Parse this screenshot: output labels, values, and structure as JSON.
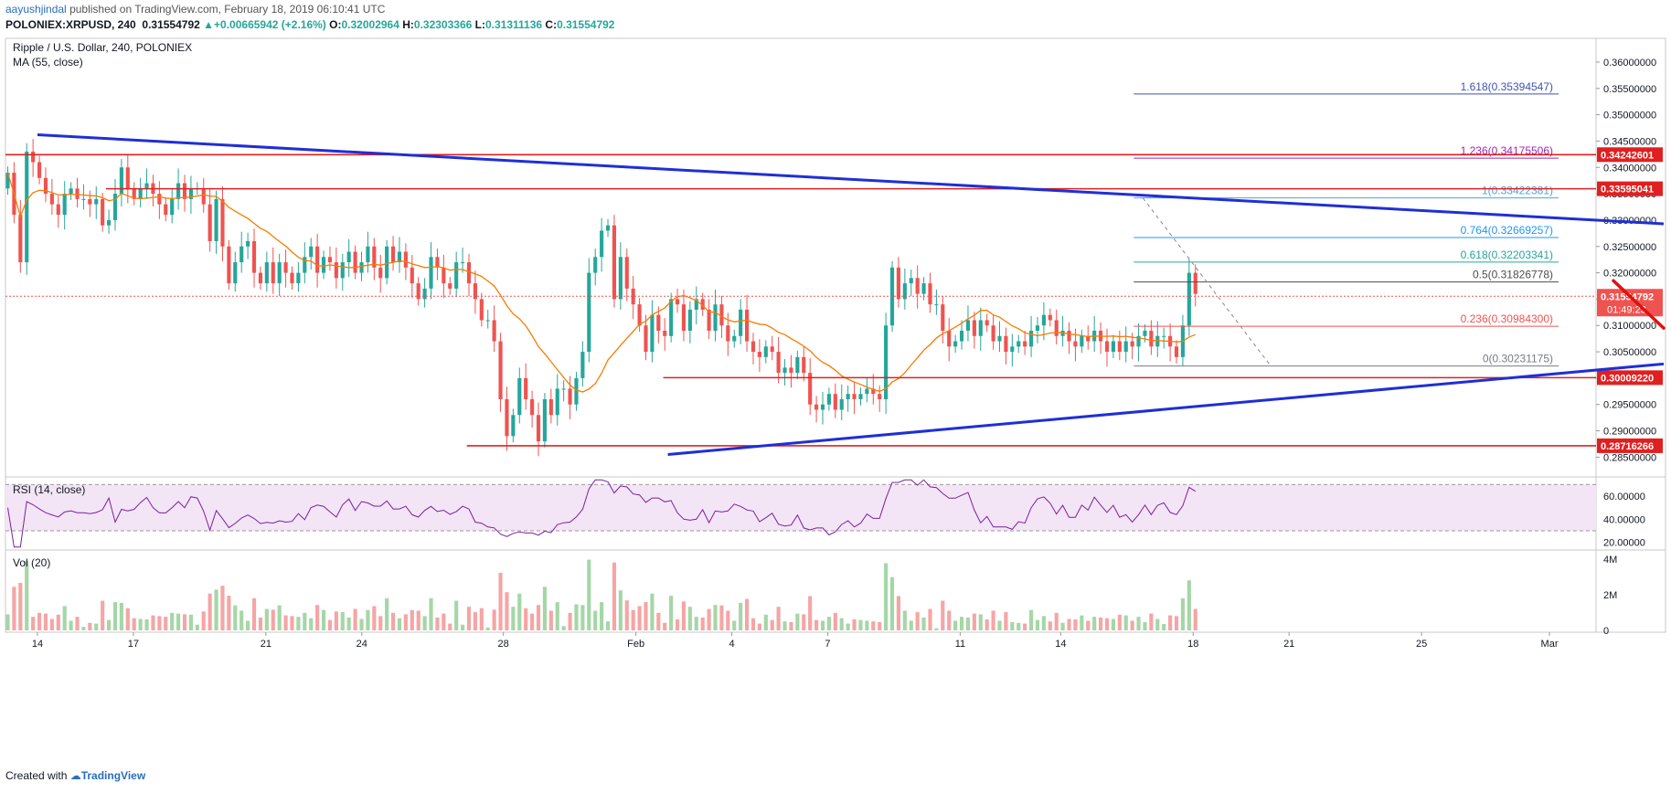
{
  "header": {
    "author": "aayushjindal",
    "published_text": "published on TradingView.com, February 18, 2019 06:10:41 UTC",
    "symbol_line": "POLONIEX:XRPUSD, 240",
    "last": "0.31554792",
    "change": "+0.00665942 (+2.16%)",
    "open_label": "O:",
    "open": "0.32002964",
    "high_label": "H:",
    "high": "0.32303366",
    "low_label": "L:",
    "low": "0.31311136",
    "close_label": "C:",
    "close": "0.31554792"
  },
  "footer": {
    "created_with": "Created with",
    "brand": "TradingView"
  },
  "colors": {
    "up": "#26a69a",
    "down": "#ef5350",
    "ma": "#f57c00",
    "trend": "#1f2fd6",
    "resistance": "#e02020",
    "rsi": "#7b1fa2",
    "rsi_band": "#f3e5f5",
    "fib_0": "#787b86",
    "fib_236": "#ef5350",
    "fib_05": "#4d4d4d",
    "fib_618": "#26a69a",
    "fib_764": "#2196f3",
    "fib_1": "#4fa3d8",
    "fib_1236": "#9c27b0",
    "fib_1618": "#3f51b5",
    "arrow": "#e01010"
  },
  "chart_data": {
    "type": "candlestick",
    "main": {
      "title": "Ripple / U.S. Dollar, 240, POLONIEX",
      "ma_label": "MA (55, close)",
      "ylim": [
        0.2816,
        0.3645
      ],
      "y_ticks": [
        0.36,
        0.355,
        0.35,
        0.345,
        0.34,
        0.335,
        0.33,
        0.325,
        0.32,
        0.315,
        0.31,
        0.305,
        0.3,
        0.295,
        0.29,
        0.285
      ],
      "y_tick_labels": [
        "0.36000000",
        "0.35500000",
        "0.35000000",
        "0.34500000",
        "0.34000000",
        "0.33500000",
        "0.33000000",
        "0.32500000",
        "0.32000000",
        "0.31500000",
        "0.31000000",
        "0.30500000",
        "0.30000000",
        "0.29500000",
        "0.29000000",
        "0.28500000"
      ],
      "price_tag": {
        "value": 0.31554792,
        "label": "0.31554792",
        "countdown": "01:49:23"
      },
      "levels": [
        {
          "value": 0.34242601,
          "label": "0.34242601",
          "x_start": 0
        },
        {
          "value": 0.33595041,
          "label": "0.33595041",
          "x_start": 2.2
        },
        {
          "value": 0.3000922,
          "label": "0.30009220",
          "x_start": 14.4
        },
        {
          "value": 0.28716266,
          "label": "0.28716266",
          "x_start": 10.1
        }
      ],
      "fib": {
        "x_start": 24.7,
        "levels": [
          {
            "ratio": "1.618",
            "value": 0.35394547,
            "label": "1.618(0.35394547)",
            "color_key": "fib_1618"
          },
          {
            "ratio": "1.236",
            "value": 0.34175506,
            "label": "1.236(0.34175506)",
            "color_key": "fib_1236"
          },
          {
            "ratio": "1",
            "value": 0.33422381,
            "label": "1(0.33422381)",
            "color_key": "fib_1"
          },
          {
            "ratio": "0.764",
            "value": 0.32669257,
            "label": "0.764(0.32669257)",
            "color_key": "fib_764"
          },
          {
            "ratio": "0.618",
            "value": 0.32203341,
            "label": "0.618(0.32203341)",
            "color_key": "fib_618"
          },
          {
            "ratio": "0.5",
            "value": 0.31826778,
            "label": "0.5(0.31826778)",
            "color_key": "fib_05"
          },
          {
            "ratio": "0.236",
            "value": 0.309843,
            "label": "0.236(0.30984300)",
            "color_key": "fib_236"
          },
          {
            "ratio": "0",
            "value": 0.30231175,
            "label": "0(0.30231175)",
            "color_key": "fib_0"
          }
        ]
      },
      "trendlines": [
        {
          "x1": 0.7,
          "y1": 0.3462,
          "x2": 36.3,
          "y2": 0.3293
        },
        {
          "x1": 14.5,
          "y1": 0.2855,
          "x2": 36.3,
          "y2": 0.3027
        }
      ],
      "projection_arrow": [
        [
          35.2,
          0.3185
        ],
        [
          36.3,
          0.3095
        ],
        [
          37.0,
          0.3095
        ],
        [
          37.9,
          0.3245
        ],
        [
          38.5,
          0.3245
        ],
        [
          39.3,
          0.3065
        ],
        [
          40.0,
          0.3085
        ],
        [
          41.3,
          0.34
        ]
      ],
      "fib_dashed": {
        "x1": 24.9,
        "y1": 0.3342,
        "x2": 27.7,
        "y2": 0.3023
      },
      "closes": [
        0.339,
        0.331,
        0.322,
        0.343,
        0.341,
        0.338,
        0.335,
        0.333,
        0.331,
        0.335,
        0.336,
        0.334,
        0.334,
        0.333,
        0.334,
        0.329,
        0.33,
        0.335,
        0.34,
        0.336,
        0.334,
        0.336,
        0.337,
        0.335,
        0.333,
        0.331,
        0.334,
        0.337,
        0.334,
        0.336,
        0.336,
        0.333,
        0.326,
        0.334,
        0.325,
        0.318,
        0.322,
        0.325,
        0.326,
        0.32,
        0.318,
        0.322,
        0.318,
        0.322,
        0.32,
        0.318,
        0.32,
        0.323,
        0.325,
        0.32,
        0.323,
        0.322,
        0.319,
        0.322,
        0.324,
        0.32,
        0.322,
        0.325,
        0.321,
        0.319,
        0.325,
        0.322,
        0.324,
        0.321,
        0.318,
        0.315,
        0.317,
        0.323,
        0.321,
        0.318,
        0.317,
        0.322,
        0.322,
        0.318,
        0.315,
        0.311,
        0.311,
        0.307,
        0.296,
        0.289,
        0.293,
        0.3,
        0.296,
        0.293,
        0.288,
        0.296,
        0.293,
        0.298,
        0.298,
        0.295,
        0.3,
        0.305,
        0.32,
        0.323,
        0.328,
        0.329,
        0.315,
        0.323,
        0.317,
        0.314,
        0.31,
        0.305,
        0.312,
        0.309,
        0.308,
        0.315,
        0.314,
        0.309,
        0.313,
        0.315,
        0.313,
        0.309,
        0.314,
        0.31,
        0.307,
        0.308,
        0.313,
        0.307,
        0.305,
        0.304,
        0.306,
        0.305,
        0.301,
        0.302,
        0.301,
        0.304,
        0.301,
        0.295,
        0.294,
        0.295,
        0.297,
        0.294,
        0.296,
        0.297,
        0.296,
        0.297,
        0.298,
        0.297,
        0.296,
        0.31,
        0.321,
        0.315,
        0.318,
        0.319,
        0.316,
        0.318,
        0.314,
        0.314,
        0.309,
        0.306,
        0.307,
        0.309,
        0.311,
        0.308,
        0.311,
        0.31,
        0.307,
        0.308,
        0.305,
        0.306,
        0.307,
        0.306,
        0.309,
        0.31,
        0.312,
        0.311,
        0.308,
        0.309,
        0.307,
        0.306,
        0.308,
        0.307,
        0.309,
        0.307,
        0.305,
        0.307,
        0.305,
        0.307,
        0.306,
        0.308,
        0.309,
        0.306,
        0.308,
        0.308,
        0.306,
        0.304,
        0.31,
        0.32,
        0.316
      ]
    },
    "rsi": {
      "label": "RSI (14, close)",
      "ylim": [
        15,
        75
      ],
      "band": [
        30,
        70
      ],
      "y_ticks": [
        60,
        40,
        20
      ],
      "y_tick_labels": [
        "60.00000",
        "40.00000",
        "20.00000"
      ]
    },
    "volume": {
      "label": "Vol (20)",
      "ylim": [
        0,
        4.4
      ],
      "y_ticks": [
        4,
        2,
        0
      ],
      "y_tick_labels": [
        "4M",
        "2M",
        "0"
      ]
    },
    "x_axis": {
      "ticks": [
        {
          "pos": 0.7,
          "label": "14"
        },
        {
          "pos": 2.8,
          "label": "17"
        },
        {
          "pos": 5.7,
          "label": "21"
        },
        {
          "pos": 7.8,
          "label": "24"
        },
        {
          "pos": 10.9,
          "label": "28"
        },
        {
          "pos": 13.8,
          "label": "Feb"
        },
        {
          "pos": 15.9,
          "label": "4"
        },
        {
          "pos": 18.0,
          "label": "7"
        },
        {
          "pos": 20.9,
          "label": "11"
        },
        {
          "pos": 23.1,
          "label": "14"
        },
        {
          "pos": 26.0,
          "label": "18"
        },
        {
          "pos": 28.1,
          "label": "21"
        },
        {
          "pos": 31.0,
          "label": "25"
        },
        {
          "pos": 33.8,
          "label": "Mar"
        }
      ],
      "xlim": [
        0,
        34.8
      ]
    }
  }
}
